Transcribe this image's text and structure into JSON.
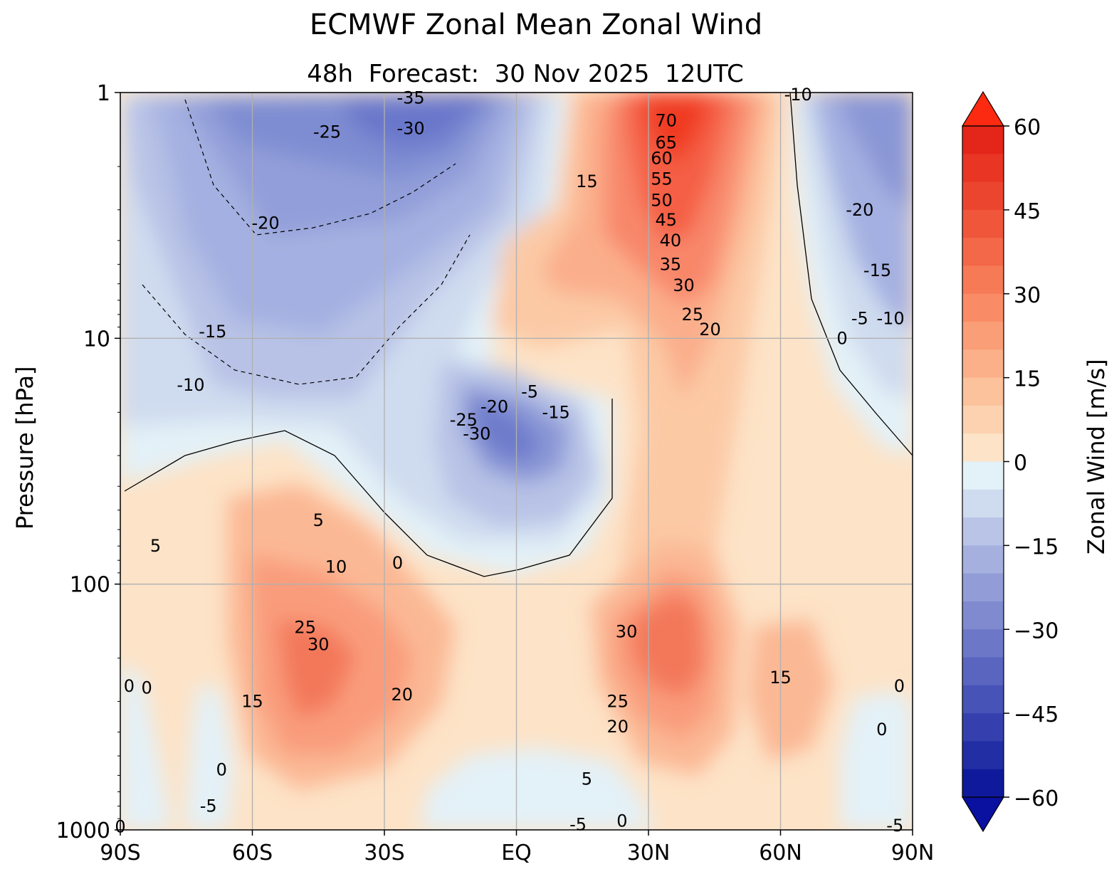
{
  "chart_data": {
    "type": "heatmap",
    "subtype": "filled-contour",
    "title": "ECMWF Zonal Mean Zonal Wind",
    "subtitle": "48h  Forecast:  30 Nov 2025  12UTC",
    "xlabel": "",
    "ylabel": "Pressure [hPa]",
    "x_ticks": [
      "90S",
      "60S",
      "30S",
      "EQ",
      "30N",
      "60N",
      "90N"
    ],
    "x_range": [
      -90,
      90
    ],
    "y_scale": "log",
    "y_range": [
      1000,
      1
    ],
    "y_ticks": [
      "1",
      "10",
      "100",
      "1000"
    ],
    "grid": true,
    "colorbar": {
      "label": "Zonal Wind [m/s]",
      "min": -60,
      "max": 60,
      "step": 5,
      "extend": "both",
      "ticks": [
        "60",
        "45",
        "30",
        "15",
        "0",
        "−15",
        "−30",
        "−45",
        "−60"
      ]
    },
    "contour_labels": [
      {
        "text": "-35",
        "lat": -24,
        "p": 1.05
      },
      {
        "text": "-30",
        "lat": -24,
        "p": 1.4
      },
      {
        "text": "-25",
        "lat": -43,
        "p": 1.45
      },
      {
        "text": "-20",
        "lat": -57,
        "p": 3.4
      },
      {
        "text": "-15",
        "lat": -69,
        "p": 9.4
      },
      {
        "text": "-10",
        "lat": -74,
        "p": 15.5
      },
      {
        "text": "15",
        "lat": 16,
        "p": 2.3
      },
      {
        "text": "70",
        "lat": 34,
        "p": 1.3
      },
      {
        "text": "65",
        "lat": 34,
        "p": 1.6
      },
      {
        "text": "60",
        "lat": 33,
        "p": 1.85
      },
      {
        "text": "55",
        "lat": 33,
        "p": 2.25
      },
      {
        "text": "50",
        "lat": 33,
        "p": 2.75
      },
      {
        "text": "45",
        "lat": 34,
        "p": 3.3
      },
      {
        "text": "40",
        "lat": 35,
        "p": 4.0
      },
      {
        "text": "35",
        "lat": 35,
        "p": 5.0
      },
      {
        "text": "30",
        "lat": 38,
        "p": 6.1
      },
      {
        "text": "25",
        "lat": 40,
        "p": 8.0
      },
      {
        "text": "20",
        "lat": 44,
        "p": 9.2
      },
      {
        "text": "-10",
        "lat": 64,
        "p": 1.02
      },
      {
        "text": "-20",
        "lat": 78,
        "p": 3.0
      },
      {
        "text": "-15",
        "lat": 82,
        "p": 5.3
      },
      {
        "text": "-5",
        "lat": 78,
        "p": 8.3
      },
      {
        "text": "-10",
        "lat": 85,
        "p": 8.3
      },
      {
        "text": "0",
        "lat": 74,
        "p": 10.0
      },
      {
        "text": "-5",
        "lat": 3,
        "p": 16.5
      },
      {
        "text": "-20",
        "lat": -5,
        "p": 19.0
      },
      {
        "text": "-15",
        "lat": 9,
        "p": 20.0
      },
      {
        "text": "-25",
        "lat": -12,
        "p": 21.5
      },
      {
        "text": "-30",
        "lat": -9,
        "p": 24.5
      },
      {
        "text": "5",
        "lat": -45,
        "p": 55.0
      },
      {
        "text": "0",
        "lat": -27,
        "p": 82.0
      },
      {
        "text": "10",
        "lat": -41,
        "p": 85.0
      },
      {
        "text": "5",
        "lat": -82,
        "p": 70.0
      },
      {
        "text": "25",
        "lat": -48,
        "p": 150.0
      },
      {
        "text": "30",
        "lat": -45,
        "p": 176.0
      },
      {
        "text": "20",
        "lat": -26,
        "p": 282.0
      },
      {
        "text": "15",
        "lat": -60,
        "p": 300.0
      },
      {
        "text": "0",
        "lat": -88,
        "p": 260.0
      },
      {
        "text": "0",
        "lat": -84,
        "p": 264.0
      },
      {
        "text": "0",
        "lat": -67,
        "p": 570.0
      },
      {
        "text": "-5",
        "lat": -70,
        "p": 800.0
      },
      {
        "text": "30",
        "lat": 25,
        "p": 156.0
      },
      {
        "text": "25",
        "lat": 23,
        "p": 300.0
      },
      {
        "text": "20",
        "lat": 23,
        "p": 380.0
      },
      {
        "text": "15",
        "lat": 60,
        "p": 240.0
      },
      {
        "text": "5",
        "lat": 16,
        "p": 620.0
      },
      {
        "text": "0",
        "lat": 87,
        "p": 260.0
      },
      {
        "text": "0",
        "lat": 83,
        "p": 390.0
      },
      {
        "text": "0",
        "lat": 24,
        "p": 920.0
      },
      {
        "text": "-5",
        "lat": 14,
        "p": 950.0
      },
      {
        "text": "0",
        "lat": -90,
        "p": 970.0
      },
      {
        "text": "-5",
        "lat": 86,
        "p": 960.0
      }
    ]
  }
}
